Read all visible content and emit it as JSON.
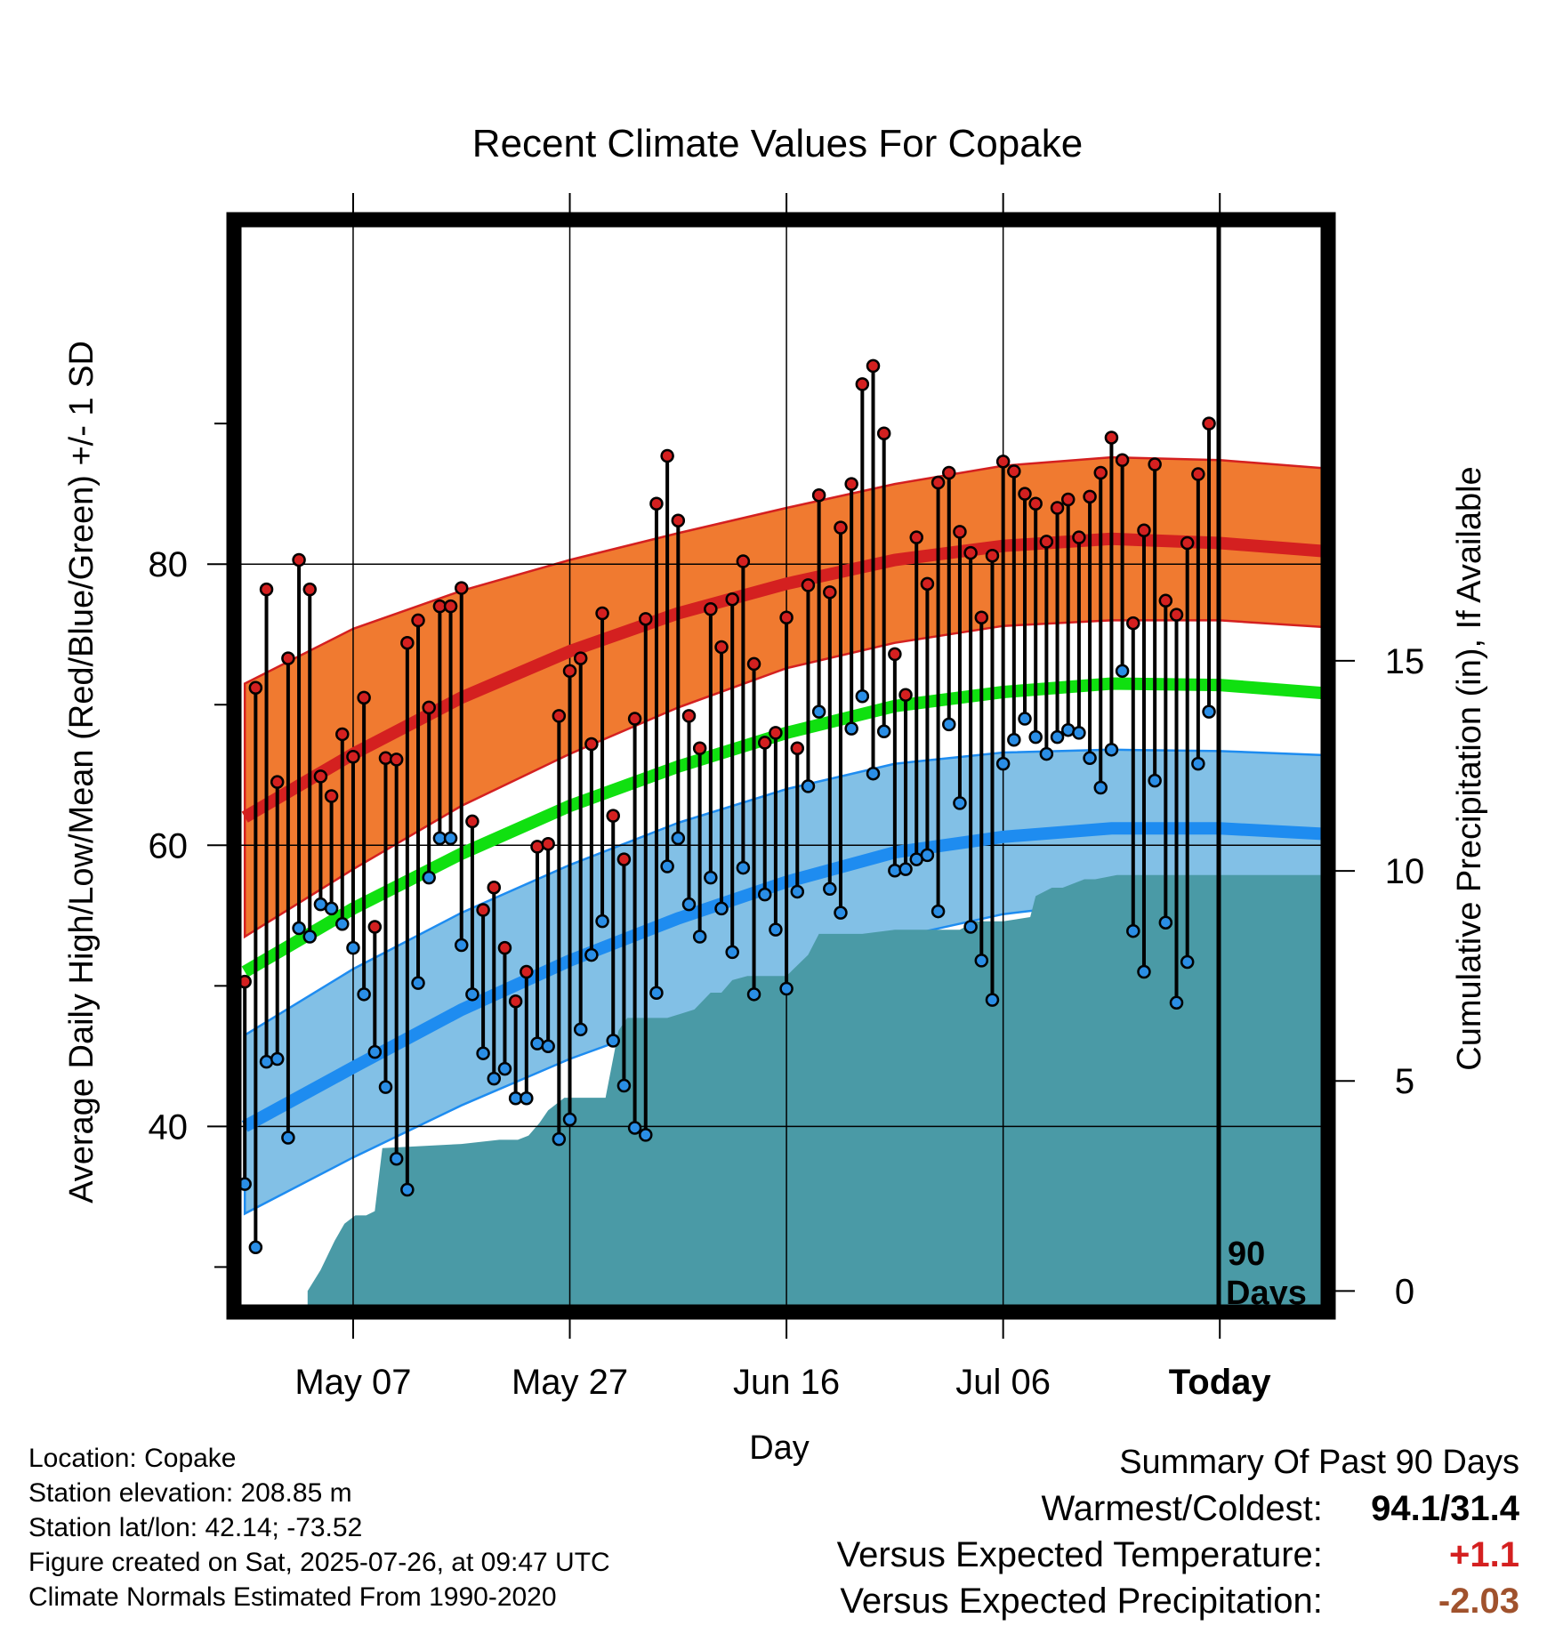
{
  "chart_data": {
    "type": "line",
    "title": "Recent Climate Values For Copake",
    "xlabel": "Day",
    "ylabel": "Average Daily High/Low/Mean (Red/Blue/Green) +/- 1 SD",
    "y2label": "Cumulative Precipitation (in), If Available",
    "x_ticks": [
      "May 07",
      "May 27",
      "Jun 16",
      "Jul 06",
      "Today"
    ],
    "x_tick_days": [
      10,
      30,
      50,
      70,
      90
    ],
    "today_marker_label_line1": "90",
    "today_marker_label_line2": "Days",
    "y_ticks": [
      "40",
      "60",
      "80"
    ],
    "y_ticks_values": [
      40,
      60,
      80
    ],
    "y_minor_ticks": [
      30,
      50,
      70,
      90
    ],
    "y2_ticks": [
      "0",
      "5",
      "10",
      "15"
    ],
    "y2_tick_values": [
      0,
      5,
      10,
      15
    ],
    "xlim": [
      -1,
      100
    ],
    "ylim": [
      26.8,
      104.5
    ],
    "y2lim": [
      -0.5,
      25.5
    ],
    "grid": true,
    "colors": {
      "normal_high_band": "#f07a30",
      "normal_high_line": "#d42020",
      "normal_low_band": "#82c0e6",
      "normal_low_line": "#1e8cf0",
      "normal_mean_line": "#10e010",
      "precip_fill": "#4a9aa6",
      "high_point": "#d42020",
      "low_point": "#2a8ee6"
    },
    "normals": {
      "days": [
        0,
        10,
        20,
        30,
        40,
        50,
        60,
        70,
        80,
        90,
        100
      ],
      "normal_high": [
        62.0,
        66.5,
        70.5,
        73.8,
        76.5,
        78.6,
        80.3,
        81.3,
        81.8,
        81.5,
        80.9
      ],
      "normal_high_sd_upper": [
        71.5,
        75.4,
        78.1,
        80.3,
        82.2,
        84.0,
        85.7,
        87.0,
        87.6,
        87.4,
        86.8
      ],
      "normal_high_sd_lower": [
        53.5,
        58.3,
        62.8,
        66.5,
        69.8,
        72.6,
        74.4,
        75.6,
        76.0,
        76.0,
        75.5
      ],
      "normal_low": [
        40.0,
        44.2,
        48.3,
        51.8,
        54.8,
        57.4,
        59.5,
        60.6,
        61.2,
        61.2,
        60.8
      ],
      "normal_low_sd_upper": [
        46.5,
        51.2,
        55.2,
        58.6,
        61.6,
        64.0,
        65.8,
        66.6,
        66.8,
        66.7,
        66.4
      ],
      "normal_low_sd_lower": [
        33.8,
        37.8,
        41.5,
        44.8,
        47.6,
        50.5,
        53.4,
        55.1,
        56.0,
        56.0,
        55.5
      ],
      "normal_mean": [
        51.0,
        55.5,
        59.4,
        62.8,
        65.6,
        68.0,
        69.9,
        70.9,
        71.5,
        71.4,
        70.8
      ]
    },
    "daily": {
      "day": [
        0,
        1,
        2,
        3,
        4,
        5,
        6,
        7,
        8,
        9,
        10,
        11,
        12,
        13,
        14,
        15,
        16,
        17,
        18,
        19,
        20,
        21,
        22,
        23,
        24,
        25,
        26,
        27,
        28,
        29,
        30,
        31,
        32,
        33,
        34,
        35,
        36,
        37,
        38,
        39,
        40,
        41,
        42,
        43,
        44,
        45,
        46,
        47,
        48,
        49,
        50,
        51,
        52,
        53,
        54,
        55,
        56,
        57,
        58,
        59,
        60,
        61,
        62,
        63,
        64,
        65,
        66,
        67,
        68,
        69,
        70,
        71,
        72,
        73,
        74,
        75,
        76,
        77,
        78,
        79,
        80,
        81,
        82,
        83,
        84,
        85,
        86,
        87,
        88,
        89
      ],
      "high": [
        50.3,
        71.2,
        78.2,
        64.5,
        73.3,
        80.3,
        78.2,
        64.9,
        63.5,
        67.9,
        66.3,
        70.5,
        54.2,
        66.2,
        66.1,
        74.4,
        76.0,
        69.8,
        77.0,
        77.0,
        78.3,
        61.7,
        55.4,
        57.0,
        52.7,
        48.9,
        51.0,
        59.9,
        60.1,
        69.2,
        72.4,
        73.3,
        67.2,
        76.5,
        62.1,
        59.0,
        69.0,
        76.1,
        84.3,
        87.7,
        83.1,
        69.2,
        66.9,
        76.8,
        74.1,
        77.5,
        80.2,
        72.9,
        67.3,
        68.0,
        76.2,
        66.9,
        78.5,
        84.9,
        78.0,
        82.6,
        85.7,
        92.8,
        94.1,
        89.3,
        73.6,
        70.7,
        81.9,
        78.6,
        85.8,
        86.5,
        82.3,
        80.8,
        76.2,
        80.6,
        87.3,
        86.6,
        85.0,
        84.3,
        81.6,
        84.0,
        84.6,
        81.9,
        84.8,
        86.5,
        89.0,
        87.4,
        75.8,
        82.4,
        87.1,
        77.4,
        76.4,
        81.5,
        86.4,
        90.0
      ],
      "low": [
        35.9,
        31.4,
        44.6,
        44.8,
        39.2,
        54.1,
        53.5,
        55.8,
        55.5,
        54.4,
        52.7,
        49.4,
        45.3,
        42.8,
        37.7,
        35.5,
        50.2,
        57.7,
        60.5,
        60.5,
        52.9,
        49.4,
        45.2,
        43.4,
        44.1,
        42.0,
        42.0,
        45.9,
        45.7,
        39.1,
        40.5,
        46.9,
        52.2,
        54.6,
        46.1,
        42.9,
        39.9,
        39.4,
        49.5,
        58.5,
        60.5,
        55.8,
        53.5,
        57.7,
        55.5,
        52.4,
        58.4,
        49.4,
        56.5,
        54.0,
        49.8,
        56.7,
        64.2,
        69.5,
        56.9,
        55.2,
        68.3,
        70.6,
        65.1,
        68.1,
        58.2,
        58.3,
        59.0,
        59.3,
        55.3,
        68.6,
        63.0,
        54.2,
        51.8,
        49.0,
        65.8,
        67.5,
        69.0,
        67.7,
        66.5,
        67.7,
        68.2,
        68.0,
        66.2,
        64.1,
        66.8,
        72.4,
        53.9,
        51.0,
        64.6,
        54.5,
        48.8,
        51.7,
        65.8,
        69.5
      ]
    },
    "precip": {
      "day": [
        5.8,
        7.0,
        8.3,
        9.2,
        10.2,
        11.2,
        12.0,
        12.7,
        20.0,
        23.5,
        25.2,
        26.2,
        27.2,
        28.0,
        29.5,
        31.0,
        32.0,
        33.3,
        34.5,
        35.3,
        37.5,
        39.0,
        41.5,
        43.0,
        44.0,
        45.0,
        46.4,
        49.0,
        50.0,
        52.0,
        53.0,
        57.0,
        60.0,
        66.0,
        67.5,
        70.0,
        72.5,
        73.0,
        74.5,
        75.5,
        77.5,
        78.5,
        80.5,
        84.0,
        100.0
      ],
      "cumulative": [
        0.0,
        0.5,
        1.2,
        1.6,
        1.8,
        1.8,
        1.9,
        3.4,
        3.5,
        3.6,
        3.6,
        3.7,
        4.0,
        4.3,
        4.6,
        4.6,
        4.6,
        4.6,
        6.2,
        6.5,
        6.5,
        6.5,
        6.7,
        7.1,
        7.1,
        7.4,
        7.5,
        7.5,
        7.5,
        8.0,
        8.5,
        8.5,
        8.6,
        8.6,
        8.8,
        8.8,
        8.9,
        9.4,
        9.6,
        9.6,
        9.8,
        9.8,
        9.9,
        9.9,
        9.9
      ]
    }
  },
  "info": {
    "location": "Location: Copake",
    "elevation": "Station elevation: 208.85 m",
    "latlon": "Station lat/lon: 42.14; -73.52",
    "created": "Figure created on Sat, 2025-07-26, at 09:47 UTC",
    "normals": "Climate Normals Estimated From 1990-2020"
  },
  "summary": {
    "heading": "Summary Of Past 90 Days",
    "warmest_coldest_label": "Warmest/Coldest:",
    "warmest_coldest_value": "94.1/31.4",
    "temp_label": "Versus Expected Temperature:",
    "temp_value": "+1.1",
    "temp_color": "#d42020",
    "precip_label": "Versus Expected Precipitation:",
    "precip_value": "-2.03",
    "precip_color": "#a0522d"
  }
}
